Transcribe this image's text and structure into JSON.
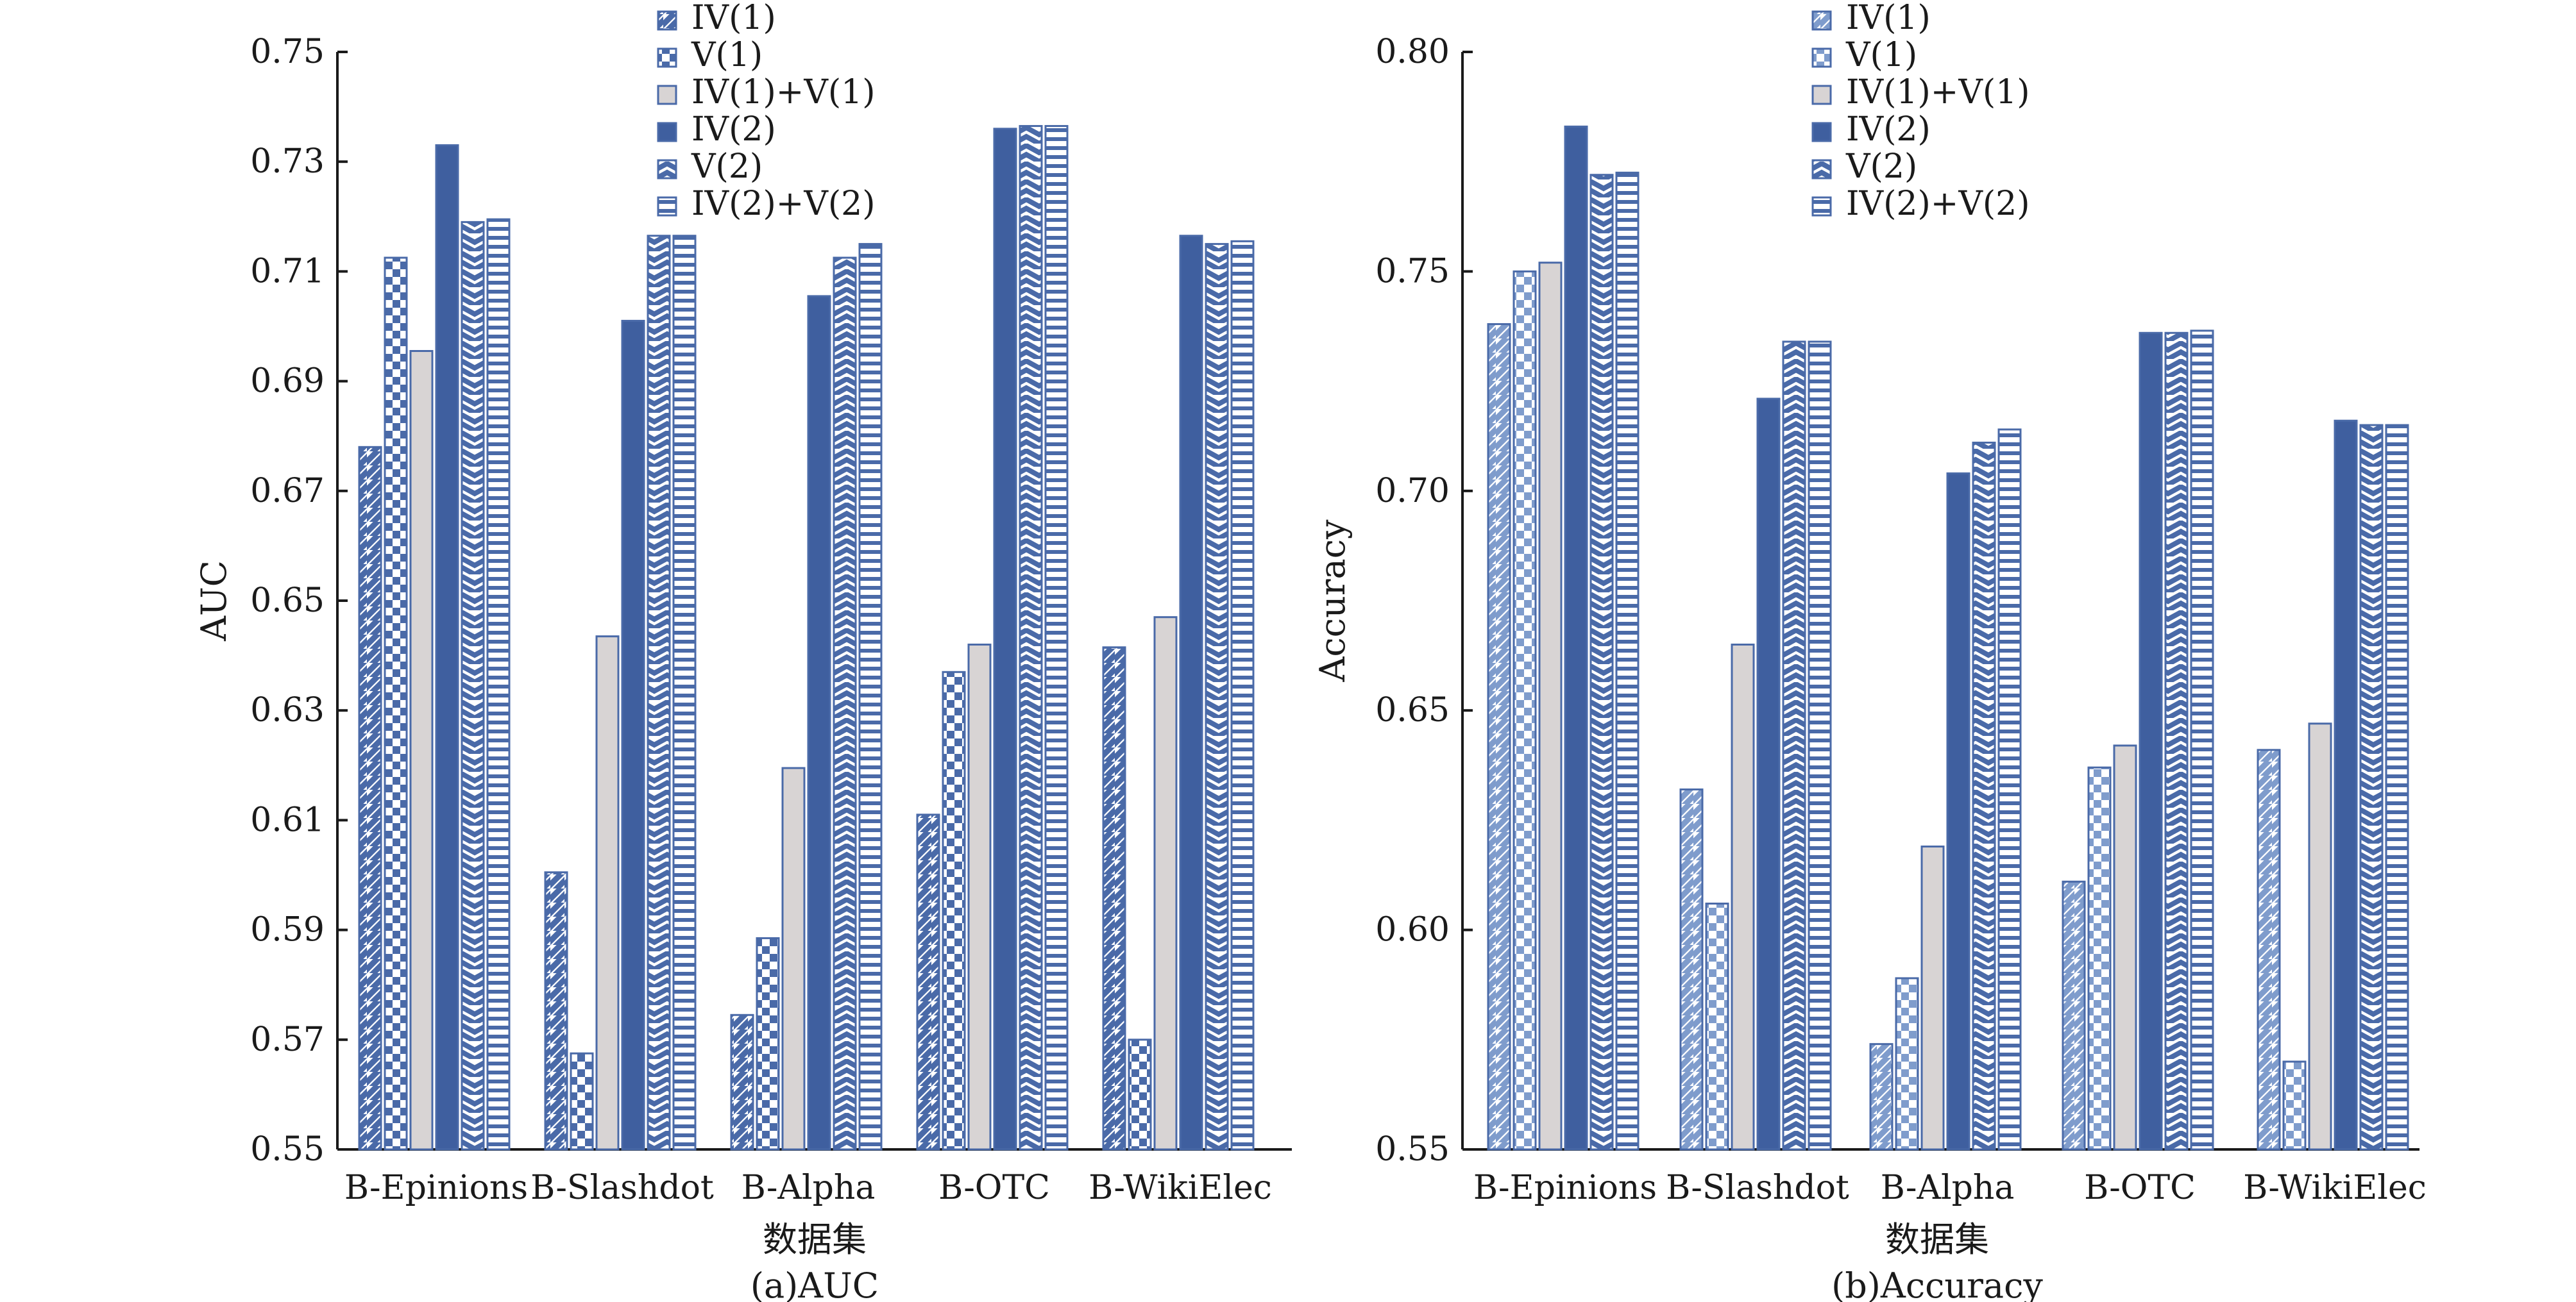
{
  "colors": {
    "blue": "#4a6aa8",
    "dark_blue": "#3f5f9f",
    "light_blue": "#7f9ccc",
    "gray": "#d8d4d4",
    "axis": "#1a1a1a"
  },
  "chart_data": [
    {
      "type": "bar",
      "caption": "(a)AUC",
      "xlabel": "数据集",
      "ylabel": "AUC",
      "ylim": [
        0.55,
        0.75
      ],
      "yticks": [
        "0.55",
        "0.57",
        "0.59",
        "0.61",
        "0.63",
        "0.65",
        "0.67",
        "0.69",
        "0.71",
        "0.73",
        "0.75"
      ],
      "legend_position": "top-right",
      "categories": [
        "B-Epinions",
        "B-Slashdot",
        "B-Alpha",
        "B-OTC",
        "B-WikiElec"
      ],
      "series": [
        {
          "name": "IV(1)",
          "pattern": "diag",
          "values": [
            0.678,
            0.6005,
            0.5745,
            0.611,
            0.6415
          ]
        },
        {
          "name": "V(1)",
          "pattern": "checker",
          "values": [
            0.7125,
            0.5675,
            0.5885,
            0.637,
            0.57
          ]
        },
        {
          "name": "IV(1)+V(1)",
          "pattern": "gray",
          "values": [
            0.6955,
            0.6435,
            0.6195,
            0.642,
            0.647
          ]
        },
        {
          "name": "IV(2)",
          "pattern": "solid",
          "values": [
            0.733,
            0.701,
            0.7055,
            0.736,
            0.7165
          ]
        },
        {
          "name": "V(2)",
          "pattern": "zigzag",
          "values": [
            0.719,
            0.7165,
            0.7125,
            0.7365,
            0.715
          ]
        },
        {
          "name": "IV(2)+V(2)",
          "pattern": "hlines",
          "values": [
            0.7195,
            0.7165,
            0.715,
            0.7365,
            0.7155
          ]
        }
      ]
    },
    {
      "type": "bar",
      "caption": "(b)Accuracy",
      "xlabel": "数据集",
      "ylabel": "Accuracy",
      "ylim": [
        0.55,
        0.8
      ],
      "yticks": [
        "0.55",
        "0.60",
        "0.65",
        "0.70",
        "0.75",
        "0.80"
      ],
      "legend_position": "top-right",
      "categories": [
        "B-Epinions",
        "B-Slashdot",
        "B-Alpha",
        "B-OTC",
        "B-WikiElec"
      ],
      "series": [
        {
          "name": "IV(1)",
          "pattern": "diag-light",
          "values": [
            0.738,
            0.632,
            0.574,
            0.611,
            0.641
          ]
        },
        {
          "name": "V(1)",
          "pattern": "checker-light",
          "values": [
            0.75,
            0.606,
            0.589,
            0.637,
            0.57
          ]
        },
        {
          "name": "IV(1)+V(1)",
          "pattern": "gray",
          "values": [
            0.752,
            0.665,
            0.619,
            0.642,
            0.647
          ]
        },
        {
          "name": "IV(2)",
          "pattern": "solid",
          "values": [
            0.783,
            0.721,
            0.704,
            0.736,
            0.716
          ]
        },
        {
          "name": "V(2)",
          "pattern": "zigzag",
          "values": [
            0.772,
            0.734,
            0.711,
            0.736,
            0.715
          ]
        },
        {
          "name": "IV(2)+V(2)",
          "pattern": "hlines",
          "values": [
            0.7725,
            0.734,
            0.714,
            0.7365,
            0.715
          ]
        }
      ]
    }
  ]
}
